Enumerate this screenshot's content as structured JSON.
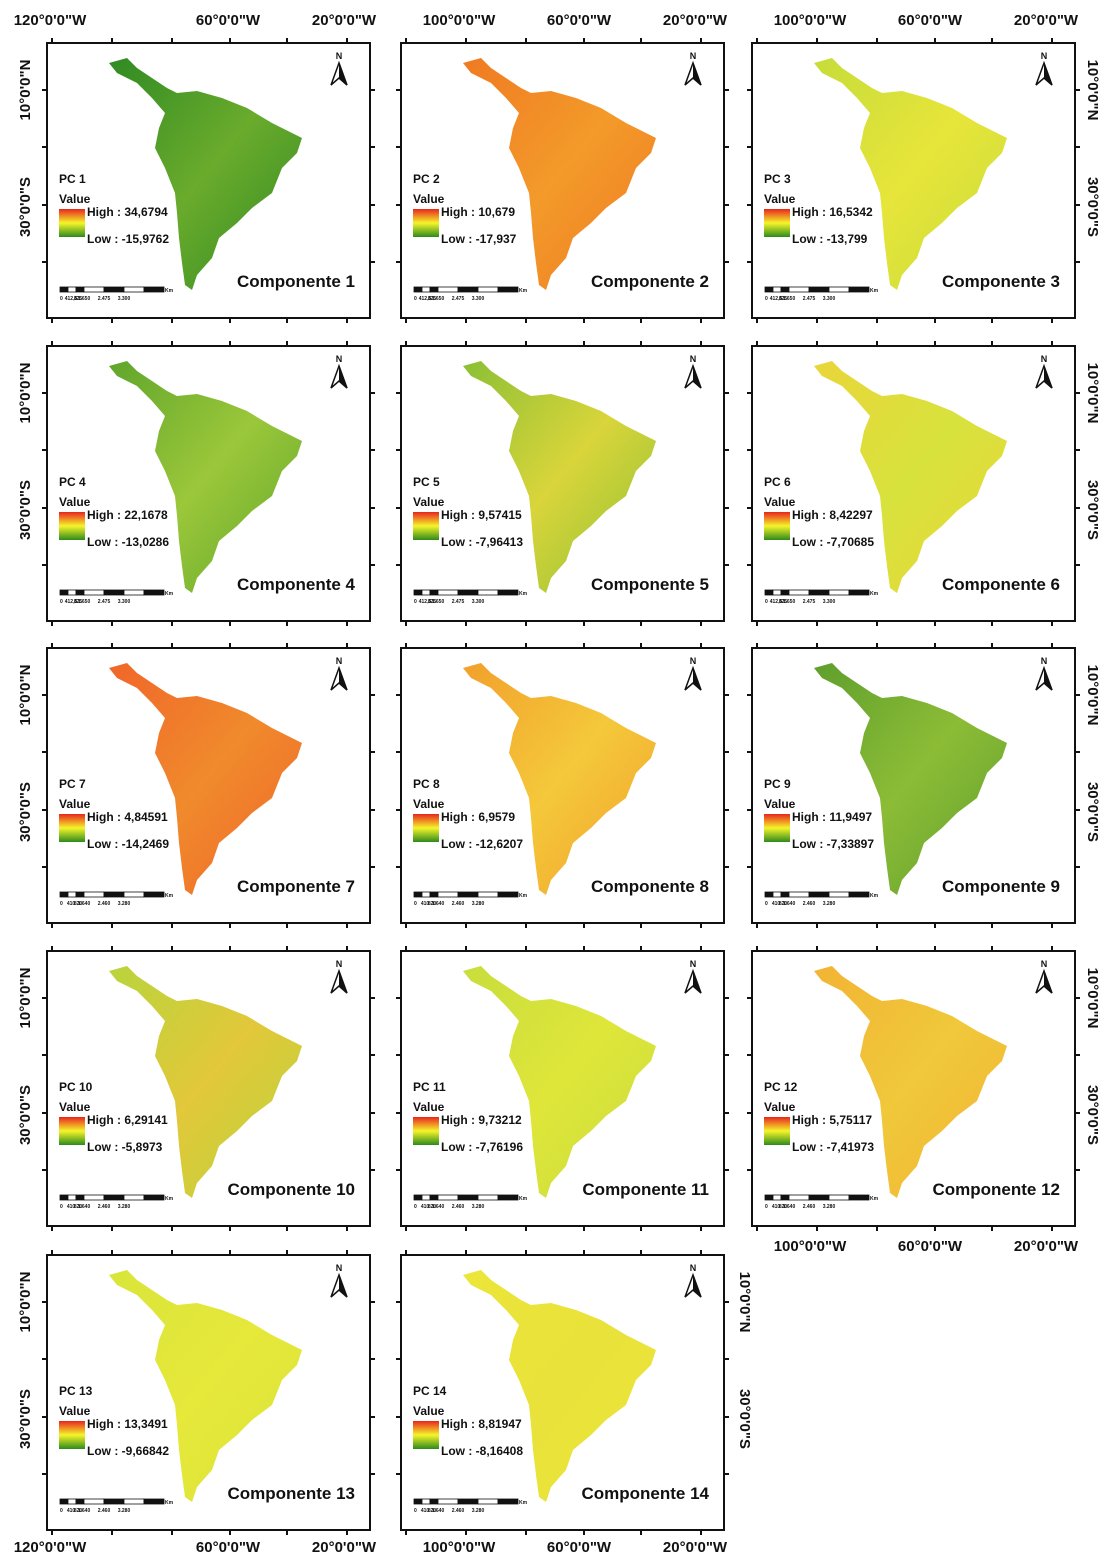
{
  "lon_labels_col1": [
    "120°0'0\"W",
    "60°0'0\"W",
    "20°0'0\"W"
  ],
  "lon_labels_col23": [
    "100°0'0\"W",
    "60°0'0\"W",
    "20°0'0\"W"
  ],
  "lat_labels": [
    "10°0'0\"N",
    "30°0'0\"S"
  ],
  "panels": [
    {
      "pc": "PC 1",
      "value": "Value",
      "high": "High : 34,6794",
      "low": "Low : -15,9762",
      "title": "Componente 1",
      "north": "N",
      "scale": [
        "0",
        "412,5",
        "825",
        "1.650",
        "2.475",
        "3.300",
        "Km"
      ]
    },
    {
      "pc": "PC 2",
      "value": "Value",
      "high": "High : 10,679",
      "low": "Low : -17,937",
      "title": "Componente 2",
      "north": "N",
      "scale": [
        "0",
        "412,5",
        "825",
        "1.650",
        "2.475",
        "3.300",
        "Km"
      ]
    },
    {
      "pc": "PC 3",
      "value": "Value",
      "high": "High : 16,5342",
      "low": "Low : -13,799",
      "title": "Componente 3",
      "north": "N",
      "scale": [
        "0",
        "412,5",
        "825",
        "1.650",
        "2.475",
        "3.300",
        "Km"
      ]
    },
    {
      "pc": "PC 4",
      "value": "Value",
      "high": "High : 22,1678",
      "low": "Low : -13,0286",
      "title": "Componente 4",
      "north": "N",
      "scale": [
        "0",
        "412,5",
        "825",
        "1.650",
        "2.475",
        "3.300",
        "Km"
      ]
    },
    {
      "pc": "PC 5",
      "value": "Value",
      "high": "High : 9,57415",
      "low": "Low : -7,96413",
      "title": "Componente 5",
      "north": "N",
      "scale": [
        "0",
        "412,5",
        "825",
        "1.650",
        "2.475",
        "3.300",
        "Km"
      ]
    },
    {
      "pc": "PC 6",
      "value": "Value",
      "high": "High : 8,42297",
      "low": "Low : -7,70685",
      "title": "Componente 6",
      "north": "N",
      "scale": [
        "0",
        "412,5",
        "825",
        "1.650",
        "2.475",
        "3.300",
        "Km"
      ]
    },
    {
      "pc": "PC 7",
      "value": "Value",
      "high": "High : 4,84591",
      "low": "Low : -14,2469",
      "title": "Componente 7",
      "north": "N",
      "scale": [
        "0",
        "410",
        "820",
        "1.640",
        "2.460",
        "3.280",
        "Km"
      ]
    },
    {
      "pc": "PC 8",
      "value": "Value",
      "high": "High : 6,9579",
      "low": "Low : -12,6207",
      "title": "Componente 8",
      "north": "N",
      "scale": [
        "0",
        "410",
        "820",
        "1.640",
        "2.460",
        "3.280",
        "Km"
      ]
    },
    {
      "pc": "PC 9",
      "value": "Value",
      "high": "High : 11,9497",
      "low": "Low : -7,33897",
      "title": "Componente 9",
      "north": "N",
      "scale": [
        "0",
        "410",
        "820",
        "1.640",
        "2.460",
        "3.280",
        "Km"
      ]
    },
    {
      "pc": "PC 10",
      "value": "Value",
      "high": "High : 6,29141",
      "low": "Low : -5,8973",
      "title": "Componente 10",
      "north": "N",
      "scale": [
        "0",
        "410",
        "820",
        "1.640",
        "2.460",
        "3.280",
        "Km"
      ]
    },
    {
      "pc": "PC 11",
      "value": "Value",
      "high": "High : 9,73212",
      "low": "Low : -7,76196",
      "title": "Componente 11",
      "north": "N",
      "scale": [
        "0",
        "410",
        "820",
        "1.640",
        "2.460",
        "3.280",
        "Km"
      ]
    },
    {
      "pc": "PC 12",
      "value": "Value",
      "high": "High : 5,75117",
      "low": "Low : -7,41973",
      "title": "Componente 12",
      "north": "N",
      "scale": [
        "0",
        "410",
        "820",
        "1.640",
        "2.460",
        "3.280",
        "Km"
      ]
    },
    {
      "pc": "PC 13",
      "value": "Value",
      "high": "High : 13,3491",
      "low": "Low : -9,66842",
      "title": "Componente 13",
      "north": "N",
      "scale": [
        "0",
        "410",
        "820",
        "1.640",
        "2.460",
        "3.280",
        "Km"
      ]
    },
    {
      "pc": "PC 14",
      "value": "Value",
      "high": "High : 8,81947",
      "low": "Low : -8,16408",
      "title": "Componente 14",
      "north": "N",
      "scale": [
        "0",
        "410",
        "820",
        "1.640",
        "2.460",
        "3.280",
        "Km"
      ]
    }
  ]
}
